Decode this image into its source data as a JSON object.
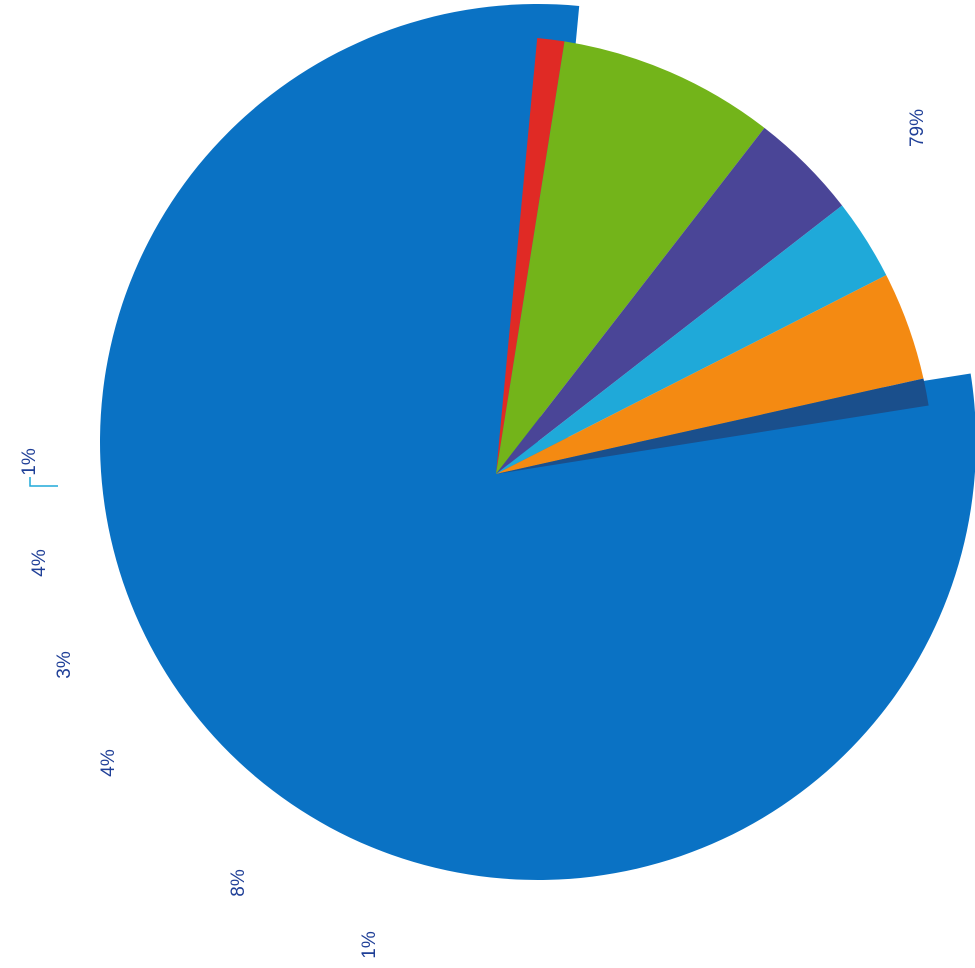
{
  "chart_data": {
    "type": "pie",
    "title": "",
    "slices": [
      {
        "label": "79%",
        "value": 79,
        "color": "#0a72c4",
        "exploded": false
      },
      {
        "label": "1%",
        "value": 1,
        "color": "#e02a25",
        "exploded": true
      },
      {
        "label": "8%",
        "value": 8,
        "color": "#73b41a",
        "exploded": true
      },
      {
        "label": "4%",
        "value": 4,
        "color": "#4a4597",
        "exploded": true
      },
      {
        "label": "3%",
        "value": 3,
        "color": "#1fa9d9",
        "exploded": true
      },
      {
        "label": "4%",
        "value": 4,
        "color": "#f48a12",
        "exploded": true
      },
      {
        "label": "1%",
        "value": 1,
        "color": "#1a4f8c",
        "exploded": true
      }
    ],
    "legend": "none",
    "label_color": "#1f3f97"
  }
}
